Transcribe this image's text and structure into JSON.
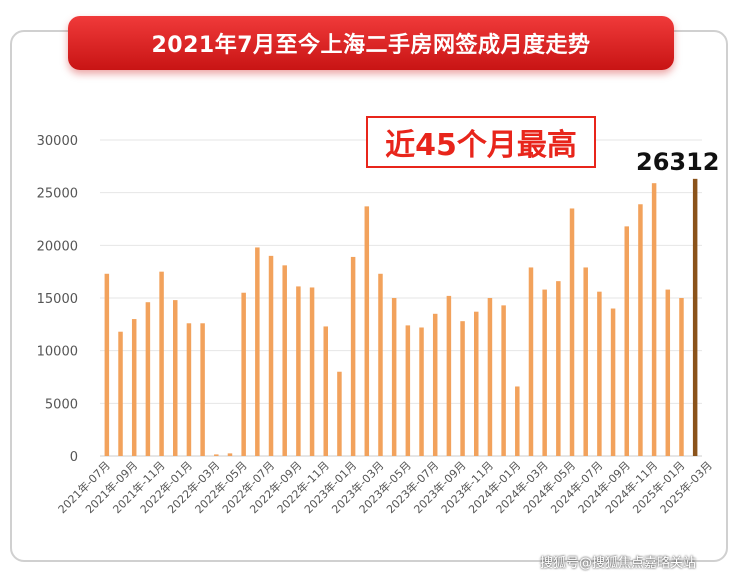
{
  "title": "2021年7月至今上海二手房网签成月度走势",
  "highlight_label": "近45个月最高",
  "peak_value_label": "26312",
  "watermark": "搜狐号@搜狐焦点嘉略关站",
  "colors": {
    "bar": "#f2a25c",
    "peak_bar": "#8b531a",
    "banner": "#e02020",
    "highlight": "#e8251b",
    "grid": "#e6e6e6",
    "axis_text": "#555555"
  },
  "chart_data": {
    "type": "bar",
    "ylim": [
      0,
      30000
    ],
    "yticks": [
      0,
      5000,
      10000,
      15000,
      20000,
      25000,
      30000
    ],
    "grid": true,
    "x_tick_labels": [
      "2021年-07月",
      "2021年-09月",
      "2021年-11月",
      "2022年-01月",
      "2022年-03月",
      "2022年-05月",
      "2022年-07月",
      "2022年-09月",
      "2022年-11月",
      "2023年-01月",
      "2023年-03月",
      "2023年-05月",
      "2023年-07月",
      "2023年-09月",
      "2023年-11月",
      "2024年-01月",
      "2024年-03月",
      "2024年-05月",
      "2024年-07月",
      "2024年-09月",
      "2024年-11月",
      "2025年-01月",
      "2025年-03月"
    ],
    "values": [
      17300,
      11800,
      13000,
      14600,
      17500,
      14800,
      12600,
      12600,
      150,
      250,
      15500,
      19800,
      19000,
      18100,
      16100,
      16000,
      12300,
      8000,
      18900,
      23700,
      17300,
      15000,
      12400,
      12200,
      13500,
      15200,
      12800,
      13700,
      15000,
      14300,
      6600,
      17900,
      15800,
      16600,
      23500,
      17900,
      15600,
      14000,
      21800,
      23900,
      25900,
      15800,
      15000,
      26312
    ],
    "highlight_index": 43
  }
}
